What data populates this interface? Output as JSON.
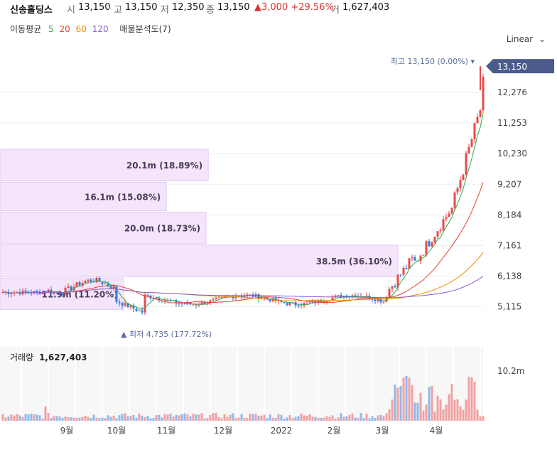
{
  "header": {
    "stock_name": "신송홀딩스",
    "open_label": "시",
    "open": "13,150",
    "high_label": "고",
    "high": "13,150",
    "low_label": "저",
    "low": "12,350",
    "close_label": "종",
    "close": "13,150",
    "change": "▲3,000 +29.56%",
    "volume_label": "거",
    "volume": "1,627,403"
  },
  "ma_legend": {
    "title": "이동평균",
    "periods": [
      {
        "label": "5",
        "color": "#2fa84f"
      },
      {
        "label": "20",
        "color": "#e8412f"
      },
      {
        "label": "60",
        "color": "#f08c00"
      },
      {
        "label": "120",
        "color": "#8a5cd8"
      }
    ],
    "vp_title": "매물분석도(7)"
  },
  "scale_mode": "Linear",
  "colors": {
    "up": "#e84a4a",
    "down": "#2b7de0",
    "volume_profile": "#f4e5fb",
    "badge": "#4a5b8c"
  },
  "chart_data": {
    "type": "candlestick",
    "y_axis_ticks": [
      5115,
      6138,
      7161,
      8184,
      9207,
      10230,
      11253,
      12276
    ],
    "ylim": [
      4300,
      13700
    ],
    "x_axis_ticks": [
      "9월",
      "10월",
      "11월",
      "12월",
      "2022",
      "2월",
      "3월",
      "4월"
    ],
    "last_price": 13150,
    "last_price_label": "13,150",
    "high_annotation": "최고 13,150 (0.00%)",
    "low_annotation": "▲ 최저 4,735 (177.72%)",
    "volume_profile": [
      {
        "label": "20.1m (18.89%)",
        "low": 9300,
        "high": 10400,
        "fraction": 0.189
      },
      {
        "label": "16.1m (15.08%)",
        "low": 8300,
        "high": 9300,
        "fraction": 0.151
      },
      {
        "label": "20.0m (18.73%)",
        "low": 7200,
        "high": 8300,
        "fraction": 0.187
      },
      {
        "label": "38.5m (36.10%)",
        "low": 6100,
        "high": 7200,
        "fraction": 0.361
      },
      {
        "label": "11.9m (11.20%)",
        "low": 5000,
        "high": 6100,
        "fraction": 0.112
      }
    ],
    "volume_title": "거래량",
    "volume_value": "1,627,403",
    "volume_axis_label": "10.2m"
  }
}
